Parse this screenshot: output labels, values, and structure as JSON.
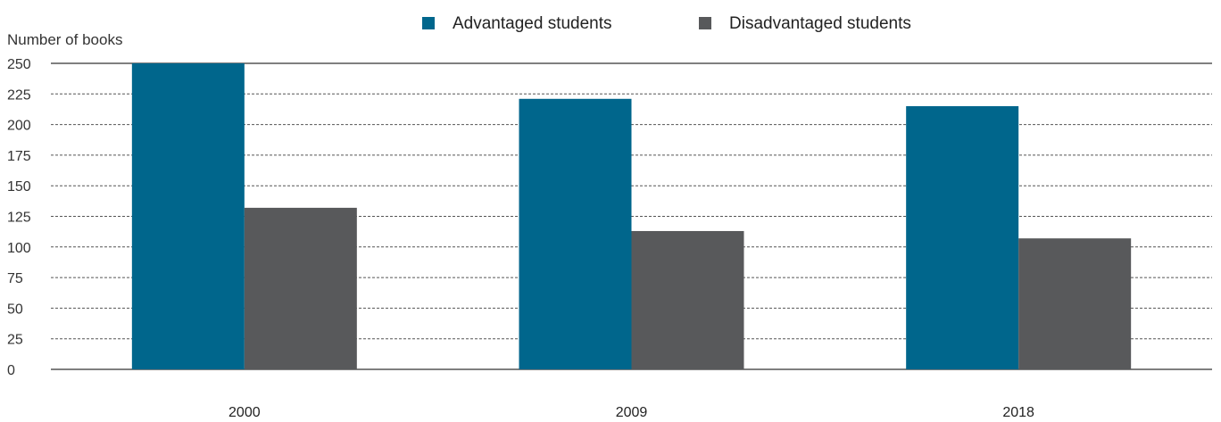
{
  "chart_data": {
    "type": "bar",
    "ylabel": "Number of books",
    "xlabel": "",
    "categories": [
      "2000",
      "2009",
      "2018"
    ],
    "series": [
      {
        "name": "Advantaged students",
        "values": [
          250,
          221,
          215
        ],
        "color": "#00668c"
      },
      {
        "name": "Disadvantaged students",
        "values": [
          132,
          113,
          107
        ],
        "color": "#58595b"
      }
    ],
    "ylim": [
      0,
      250
    ],
    "yticks": [
      "0",
      "25",
      "50",
      "75",
      "100",
      "125",
      "150",
      "175",
      "200",
      "225",
      "250"
    ],
    "grid": true,
    "legend_position": "top-center"
  }
}
